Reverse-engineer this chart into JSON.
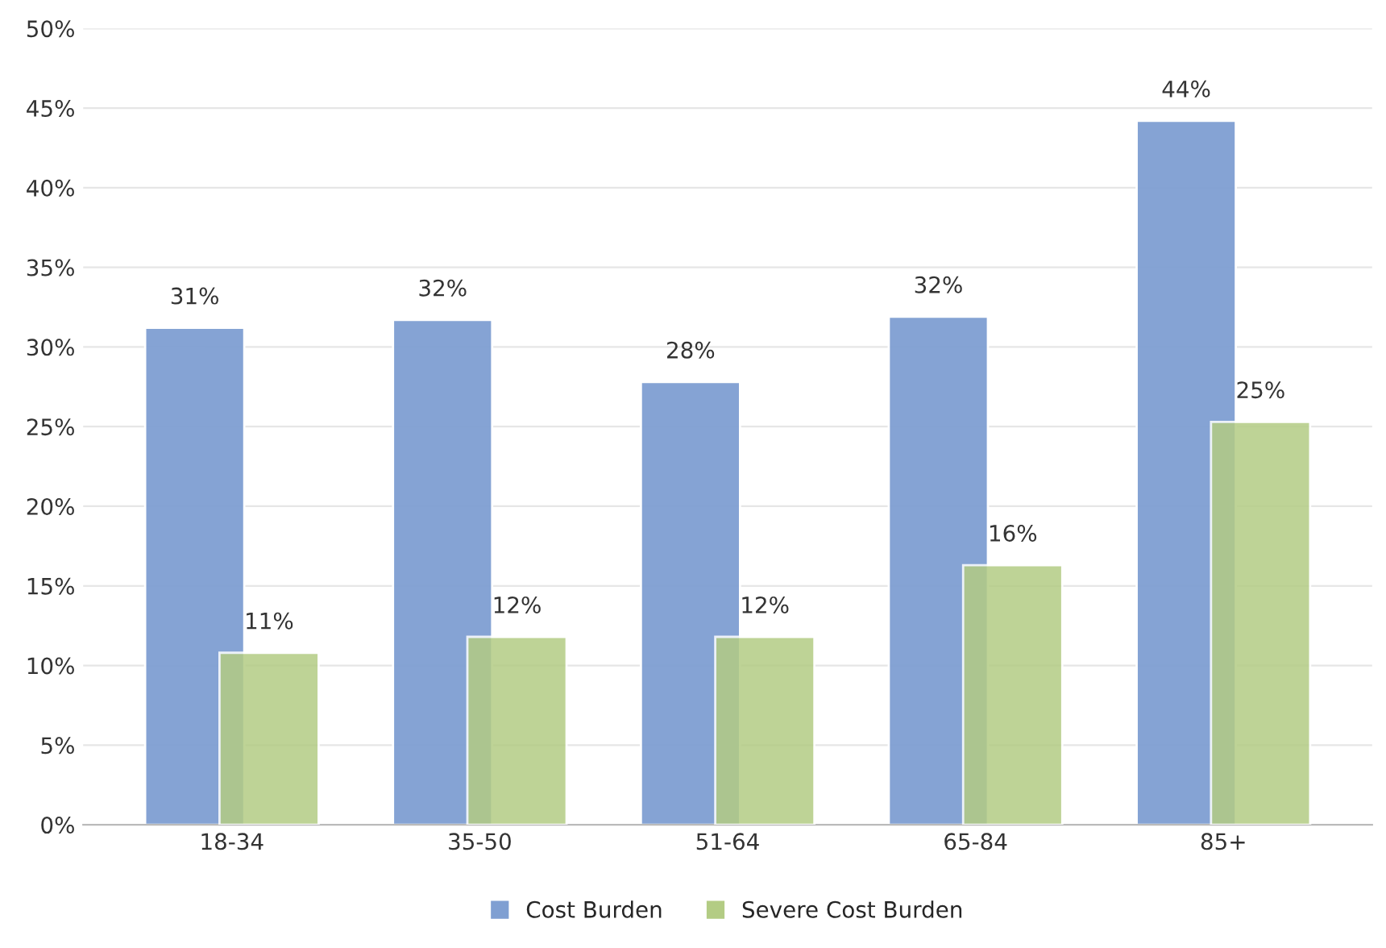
{
  "chart_data": {
    "type": "bar",
    "categories": [
      "18-34",
      "35-50",
      "51-64",
      "65-84",
      "85+"
    ],
    "series": [
      {
        "name": "Cost Burden",
        "color": "#7f9fd2",
        "values": [
          31.2,
          31.7,
          27.8,
          31.9,
          44.2
        ],
        "value_labels": [
          "31%",
          "32%",
          "28%",
          "32%",
          "44%"
        ]
      },
      {
        "name": "Severe Cost Burden",
        "color": "#b3cc84",
        "values": [
          10.8,
          11.8,
          11.8,
          16.3,
          25.3
        ],
        "value_labels": [
          "11%",
          "12%",
          "12%",
          "16%",
          "25%"
        ]
      }
    ],
    "ylim": [
      0,
      50
    ],
    "yticks": [
      {
        "value": 0,
        "label": "0%"
      },
      {
        "value": 5,
        "label": "5%"
      },
      {
        "value": 10,
        "label": "10%"
      },
      {
        "value": 15,
        "label": "15%"
      },
      {
        "value": 20,
        "label": "20%"
      },
      {
        "value": 25,
        "label": "25%"
      },
      {
        "value": 30,
        "label": "30%"
      },
      {
        "value": 35,
        "label": "35%"
      },
      {
        "value": 40,
        "label": "40%"
      },
      {
        "value": 45,
        "label": "45%"
      },
      {
        "value": 50,
        "label": "50%"
      }
    ],
    "grid": "y",
    "legend": "bottom"
  }
}
